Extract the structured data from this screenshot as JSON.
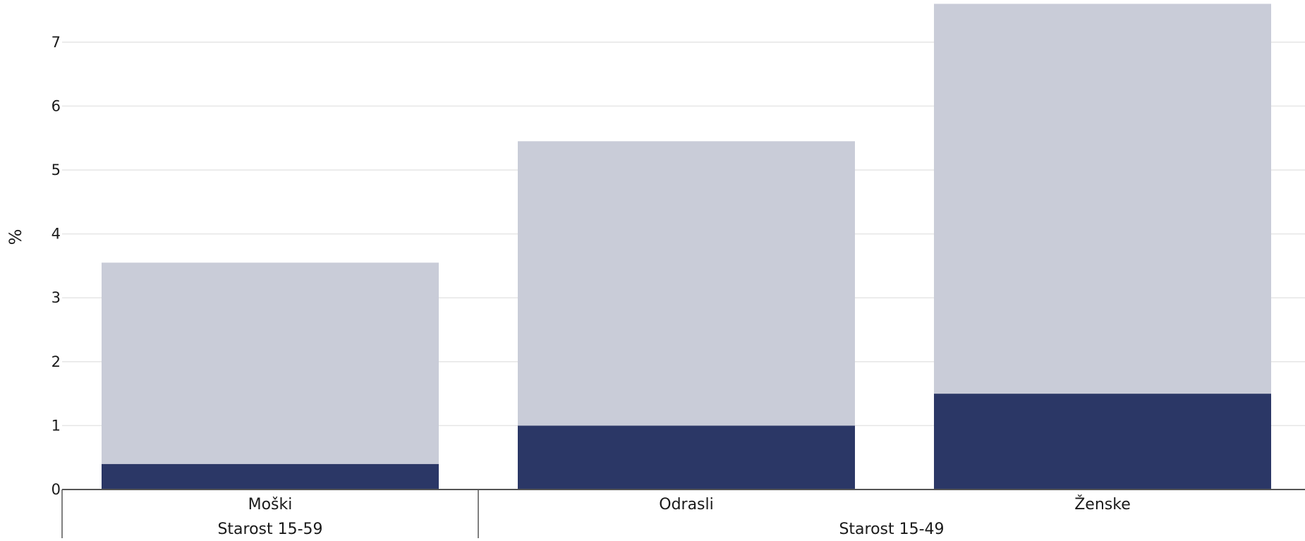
{
  "chart_data": {
    "type": "bar",
    "stacked": true,
    "title": "",
    "xlabel": "",
    "ylabel": "%",
    "ylim": [
      0,
      7.5
    ],
    "yticks": [
      0,
      1,
      2,
      3,
      4,
      5,
      6,
      7
    ],
    "grid": true,
    "legend": "none",
    "categories": [
      "Moški",
      "Odrasli",
      "Ženske"
    ],
    "groups": [
      {
        "label": "Starost 15-59",
        "categories": [
          "Moški"
        ]
      },
      {
        "label": "Starost 15-49",
        "categories": [
          "Odrasli",
          "Ženske"
        ]
      }
    ],
    "series": [
      {
        "values": [
          0.4,
          1.0,
          1.5
        ],
        "color": "#2b3766"
      },
      {
        "values": [
          3.15,
          4.45,
          6.1
        ],
        "color": "#c9ccd8"
      }
    ]
  }
}
